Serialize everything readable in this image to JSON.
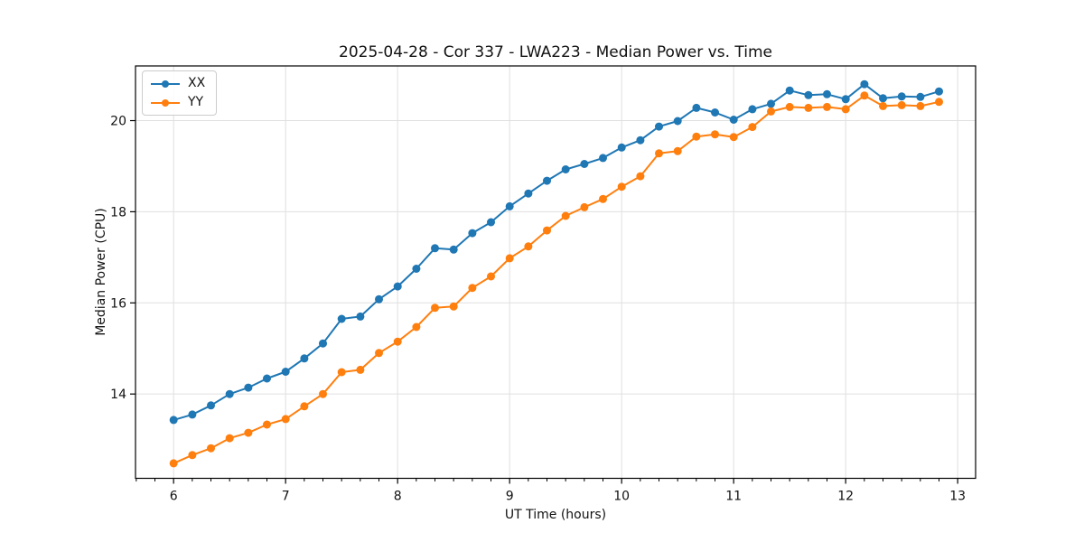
{
  "chart_data": {
    "type": "line",
    "title": "2025-04-28 - Cor 337 - LWA223 - Median Power vs. Time",
    "xlabel": "UT Time (hours)",
    "ylabel": "Median Power (CPU)",
    "xlim": [
      5.66,
      13.16
    ],
    "ylim": [
      12.15,
      21.2
    ],
    "x_ticks": [
      6,
      7,
      8,
      9,
      10,
      11,
      12,
      13
    ],
    "y_ticks": [
      14,
      16,
      18,
      20
    ],
    "x_minor_ticks_per_hour": 6,
    "grid": true,
    "legend_position": "upper-left",
    "background_color": "#ffffff",
    "grid_color": "#e0e0e0",
    "spine_color": "#000000",
    "x": [
      6.0,
      6.167,
      6.333,
      6.5,
      6.667,
      6.833,
      7.0,
      7.167,
      7.333,
      7.5,
      7.667,
      7.833,
      8.0,
      8.167,
      8.333,
      8.5,
      8.667,
      8.833,
      9.0,
      9.167,
      9.333,
      9.5,
      9.667,
      9.833,
      10.0,
      10.167,
      10.333,
      10.5,
      10.667,
      10.833,
      11.0,
      11.167,
      11.333,
      11.5,
      11.667,
      11.833,
      12.0,
      12.167,
      12.333,
      12.5,
      12.667,
      12.833
    ],
    "series": [
      {
        "name": "XX",
        "color": "#1f77b4",
        "values": [
          13.43,
          13.55,
          13.75,
          14.0,
          14.14,
          14.34,
          14.49,
          14.78,
          15.11,
          15.65,
          15.7,
          16.08,
          16.36,
          16.75,
          17.2,
          17.17,
          17.53,
          17.77,
          18.12,
          18.4,
          18.68,
          18.93,
          19.05,
          19.18,
          19.41,
          19.57,
          19.87,
          19.99,
          20.28,
          20.18,
          20.02,
          20.25,
          20.37,
          20.66,
          20.56,
          20.58,
          20.47,
          20.8,
          20.49,
          20.53,
          20.52,
          20.64
        ]
      },
      {
        "name": "YY",
        "color": "#ff7f0e",
        "values": [
          12.48,
          12.66,
          12.81,
          13.03,
          13.15,
          13.33,
          13.45,
          13.73,
          14.0,
          14.48,
          14.53,
          14.9,
          15.15,
          15.47,
          15.89,
          15.92,
          16.33,
          16.58,
          16.98,
          17.24,
          17.59,
          17.91,
          18.1,
          18.28,
          18.55,
          18.78,
          19.28,
          19.33,
          19.65,
          19.7,
          19.64,
          19.86,
          20.2,
          20.3,
          20.28,
          20.3,
          20.25,
          20.55,
          20.32,
          20.34,
          20.32,
          20.41
        ]
      }
    ]
  }
}
